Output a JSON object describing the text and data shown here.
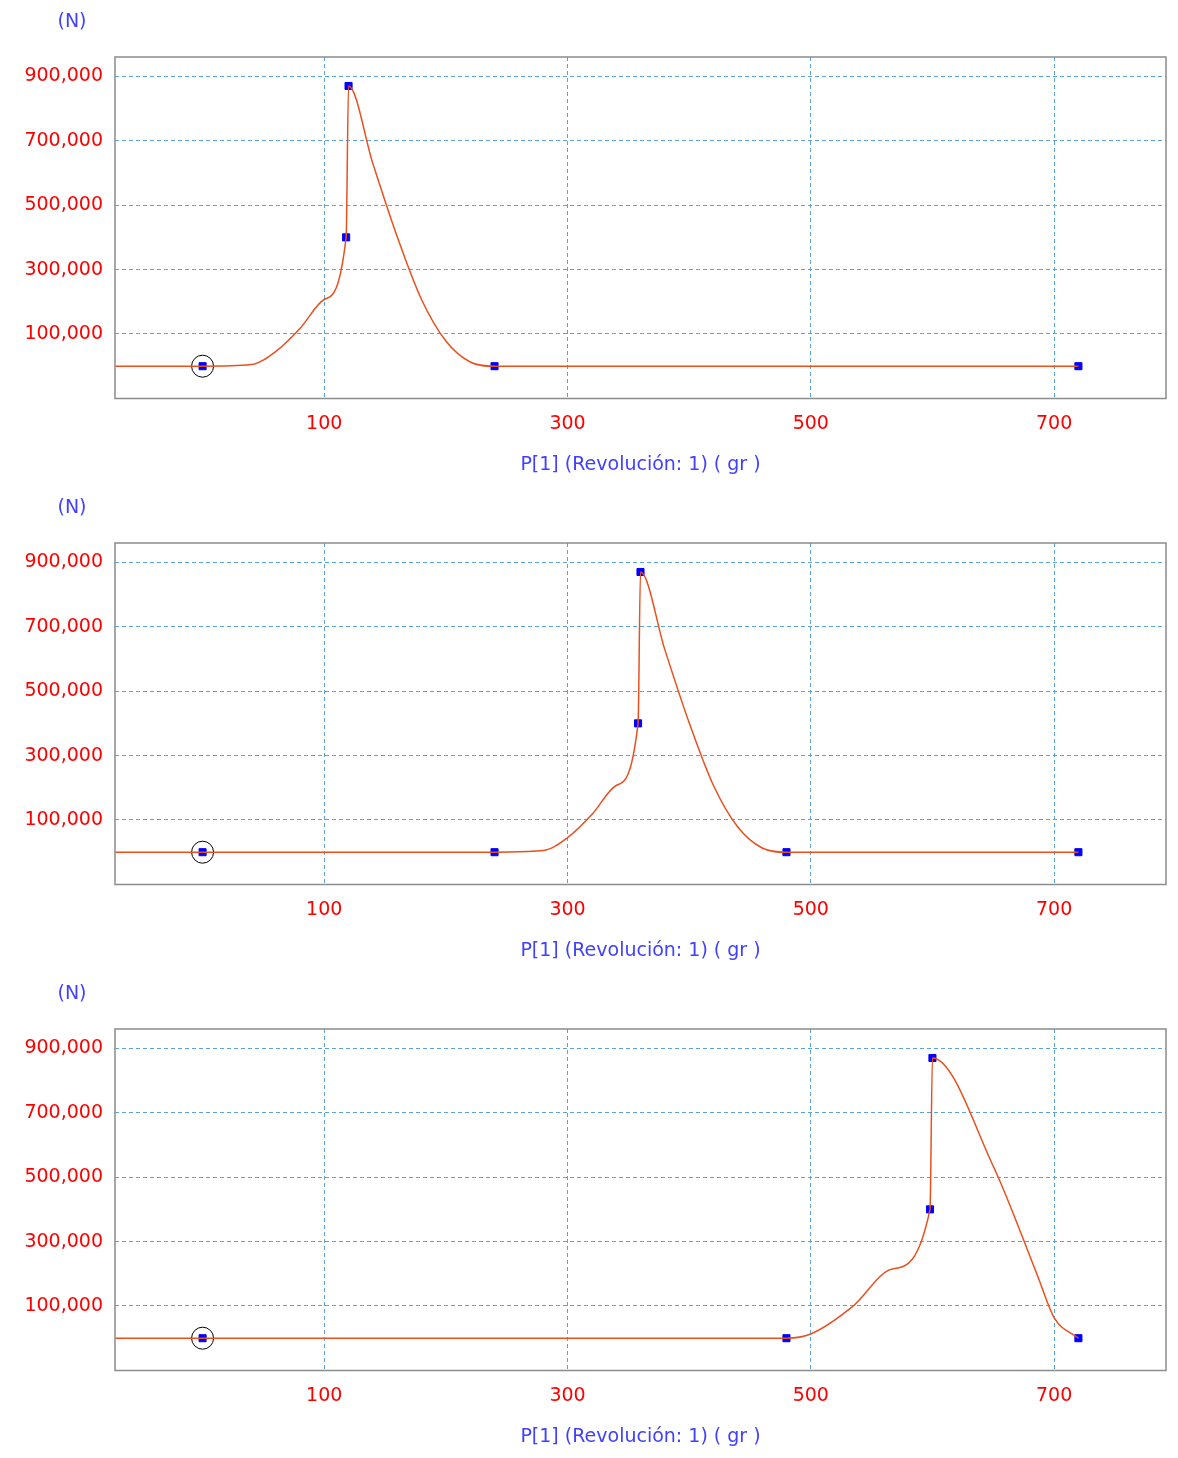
{
  "chart_data": [
    {
      "type": "line",
      "ylabel": "(N)",
      "xlabel": "P[1] (Revolución: 1) ( gr )",
      "xlim": [
        -72,
        792
      ],
      "ylim": [
        -100000,
        960000
      ],
      "xticks": [
        100,
        300,
        500,
        700
      ],
      "yticks": [
        {
          "value": 100000,
          "label": "100,000"
        },
        {
          "value": 300000,
          "label": "300,000"
        },
        {
          "value": 500000,
          "label": "500,000"
        },
        {
          "value": 700000,
          "label": "700,000"
        },
        {
          "value": 900000,
          "label": "900,000"
        }
      ],
      "grid": true,
      "line_style": "solid",
      "series": [
        {
          "type": "line",
          "marker": "none",
          "color": "#e8501e",
          "x": [
            -72,
            0,
            40,
            60,
            80,
            100,
            118,
            120,
            140,
            160,
            180,
            200,
            220,
            240,
            720
          ],
          "values": [
            0,
            0,
            5000,
            45000,
            117000,
            207000,
            400000,
            870000,
            629000,
            402000,
            207000,
            78000,
            13000,
            0,
            0
          ]
        },
        {
          "type": "scatter",
          "marker": "square",
          "color": "#0000ff",
          "x": [
            0,
            118,
            120,
            240,
            720
          ],
          "values": [
            0,
            400000,
            870000,
            0,
            0
          ]
        },
        {
          "type": "scatter",
          "marker": "circle",
          "color": "#000000",
          "x": [
            0
          ],
          "values": [
            0
          ]
        }
      ]
    },
    {
      "type": "line",
      "ylabel": "(N)",
      "xlabel": "P[1] (Revolución: 1) ( gr )",
      "xlim": [
        -72,
        792
      ],
      "ylim": [
        -100000,
        960000
      ],
      "xticks": [
        100,
        300,
        500,
        700
      ],
      "yticks": [
        {
          "value": 100000,
          "label": "100,000"
        },
        {
          "value": 300000,
          "label": "300,000"
        },
        {
          "value": 500000,
          "label": "500,000"
        },
        {
          "value": 700000,
          "label": "700,000"
        },
        {
          "value": 900000,
          "label": "900,000"
        }
      ],
      "grid": true,
      "line_style": "solid",
      "series": [
        {
          "type": "line",
          "marker": "none",
          "color": "#e8501e",
          "x": [
            -72,
            0,
            240,
            280,
            300,
            320,
            340,
            358,
            360,
            380,
            400,
            420,
            440,
            460,
            480,
            720
          ],
          "values": [
            0,
            0,
            0,
            5000,
            45000,
            117000,
            207000,
            400000,
            870000,
            629000,
            402000,
            207000,
            78000,
            13000,
            0,
            0
          ]
        },
        {
          "type": "scatter",
          "marker": "square",
          "color": "#0000ff",
          "x": [
            0,
            240,
            358,
            360,
            480,
            720
          ],
          "values": [
            0,
            0,
            400000,
            870000,
            0,
            0
          ]
        },
        {
          "type": "scatter",
          "marker": "circle",
          "color": "#000000",
          "x": [
            0
          ],
          "values": [
            0
          ]
        }
      ]
    },
    {
      "type": "line",
      "ylabel": "(N)",
      "xlabel": "P[1] (Revolución: 1) ( gr )",
      "xlim": [
        -72,
        792
      ],
      "ylim": [
        -100000,
        960000
      ],
      "xticks": [
        100,
        300,
        500,
        700
      ],
      "yticks": [
        {
          "value": 100000,
          "label": "100,000"
        },
        {
          "value": 300000,
          "label": "300,000"
        },
        {
          "value": 500000,
          "label": "500,000"
        },
        {
          "value": 700000,
          "label": "700,000"
        },
        {
          "value": 900000,
          "label": "900,000"
        }
      ],
      "grid": true,
      "line_style": "solid",
      "series": [
        {
          "type": "line",
          "marker": "none",
          "color": "#e8501e",
          "x": [
            -72,
            0,
            480,
            500,
            534,
            567,
            598,
            600,
            650,
            686,
            700,
            720
          ],
          "values": [
            0,
            0,
            0,
            13000,
            97000,
            215000,
            400000,
            870000,
            534000,
            198000,
            64000,
            0
          ]
        },
        {
          "type": "scatter",
          "marker": "square",
          "color": "#0000ff",
          "x": [
            0,
            480,
            598,
            600,
            720
          ],
          "values": [
            0,
            0,
            400000,
            870000,
            0
          ]
        },
        {
          "type": "scatter",
          "marker": "circle",
          "color": "#000000",
          "x": [
            0
          ],
          "values": [
            0
          ]
        }
      ]
    }
  ]
}
